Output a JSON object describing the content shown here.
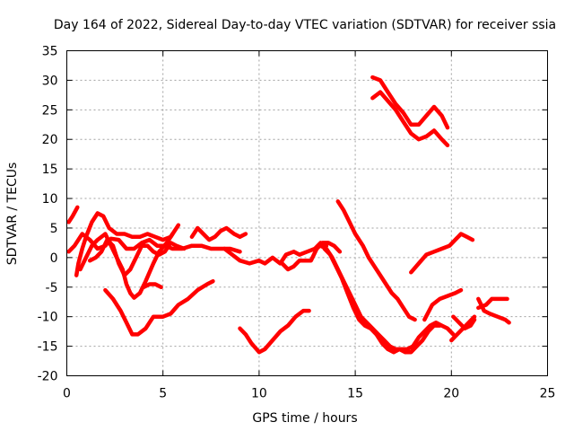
{
  "chart_data": {
    "type": "line",
    "title": "Day 164 of 2022, Sidereal Day-to-day VTEC variation (SDTVAR) for receiver ssia",
    "xlabel": "GPS time / hours",
    "ylabel": "SDTVAR / TECUs",
    "xlim": [
      0,
      25
    ],
    "ylim": [
      -20,
      35
    ],
    "xticks": [
      0,
      5,
      10,
      15,
      20,
      25
    ],
    "yticks": [
      -20,
      -15,
      -10,
      -5,
      0,
      5,
      10,
      15,
      20,
      25,
      30,
      35
    ],
    "grid": true,
    "line_color": "#ff0000",
    "series": [
      {
        "name": "s1",
        "points": [
          [
            0.1,
            6
          ],
          [
            0.3,
            7
          ],
          [
            0.55,
            8.5
          ]
        ]
      },
      {
        "name": "s2",
        "points": [
          [
            0.1,
            1
          ],
          [
            0.4,
            2
          ],
          [
            0.8,
            4
          ],
          [
            1.2,
            3
          ],
          [
            1.6,
            1.5
          ],
          [
            2.0,
            2
          ],
          [
            2.3,
            3.2
          ],
          [
            2.7,
            3
          ],
          [
            3.1,
            1.5
          ],
          [
            3.5,
            1.5
          ],
          [
            3.9,
            2.5
          ],
          [
            4.3,
            3
          ],
          [
            4.7,
            2
          ],
          [
            5.1,
            2
          ],
          [
            5.5,
            1.5
          ],
          [
            6.0,
            1.5
          ],
          [
            6.5,
            2
          ],
          [
            7.0,
            2
          ],
          [
            7.5,
            1.5
          ],
          [
            8.0,
            1.5
          ],
          [
            8.5,
            1.5
          ],
          [
            9.0,
            1
          ]
        ]
      },
      {
        "name": "s3",
        "points": [
          [
            0.5,
            -3
          ],
          [
            0.6,
            -1
          ],
          [
            0.8,
            1.5
          ],
          [
            1.0,
            3.5
          ],
          [
            1.3,
            6
          ],
          [
            1.6,
            7.5
          ],
          [
            1.9,
            7
          ],
          [
            2.2,
            5
          ],
          [
            2.6,
            4
          ],
          [
            3.0,
            4
          ],
          [
            3.4,
            3.5
          ],
          [
            3.8,
            3.5
          ],
          [
            4.2,
            4
          ],
          [
            4.6,
            3.5
          ],
          [
            5.0,
            3
          ],
          [
            5.4,
            3.5
          ],
          [
            5.8,
            5.5
          ]
        ]
      },
      {
        "name": "s4",
        "points": [
          [
            0.7,
            -2
          ],
          [
            1.0,
            0
          ],
          [
            1.3,
            2
          ],
          [
            1.6,
            3
          ],
          [
            2.0,
            4
          ],
          [
            2.3,
            2
          ],
          [
            2.6,
            0
          ],
          [
            2.9,
            -2
          ],
          [
            3.1,
            -4.5
          ],
          [
            3.3,
            -6
          ],
          [
            3.5,
            -6.8
          ],
          [
            3.8,
            -6
          ],
          [
            4.1,
            -4
          ],
          [
            4.5,
            -1
          ],
          [
            4.8,
            1
          ],
          [
            5.2,
            2.5
          ],
          [
            5.5,
            4
          ]
        ]
      },
      {
        "name": "s5",
        "points": [
          [
            1.2,
            -0.5
          ],
          [
            1.5,
            0
          ],
          [
            1.8,
            1
          ],
          [
            2.1,
            3
          ],
          [
            2.4,
            2
          ],
          [
            2.7,
            -1
          ],
          [
            3.0,
            -3
          ],
          [
            3.3,
            -2
          ],
          [
            3.6,
            0
          ],
          [
            3.9,
            2
          ],
          [
            4.2,
            2
          ],
          [
            4.5,
            1
          ],
          [
            4.8,
            0.5
          ],
          [
            5.1,
            1
          ],
          [
            5.4,
            2.5
          ],
          [
            5.7,
            2
          ],
          [
            6.1,
            1.5
          ]
        ]
      },
      {
        "name": "s6",
        "points": [
          [
            2.0,
            -5.5
          ],
          [
            2.4,
            -7
          ],
          [
            2.8,
            -9
          ],
          [
            3.1,
            -11
          ],
          [
            3.4,
            -13
          ],
          [
            3.7,
            -13
          ],
          [
            4.1,
            -12
          ],
          [
            4.5,
            -10
          ],
          [
            5.0,
            -10
          ],
          [
            5.4,
            -9.5
          ],
          [
            5.8,
            -8
          ],
          [
            6.3,
            -7
          ],
          [
            6.8,
            -5.5
          ],
          [
            7.3,
            -4.5
          ],
          [
            7.6,
            -4
          ]
        ]
      },
      {
        "name": "s7",
        "points": [
          [
            4.0,
            -5
          ],
          [
            4.3,
            -4.5
          ],
          [
            4.6,
            -4.5
          ],
          [
            4.9,
            -5
          ]
        ]
      },
      {
        "name": "s8",
        "points": [
          [
            6.5,
            3.5
          ],
          [
            6.8,
            5
          ],
          [
            7.1,
            4
          ],
          [
            7.4,
            3
          ],
          [
            7.7,
            3.5
          ],
          [
            8.0,
            4.5
          ],
          [
            8.3,
            5
          ],
          [
            8.7,
            4
          ],
          [
            9.0,
            3.5
          ],
          [
            9.3,
            4
          ]
        ]
      },
      {
        "name": "s9",
        "points": [
          [
            8.2,
            1.5
          ],
          [
            8.6,
            0.5
          ],
          [
            9.0,
            -0.5
          ],
          [
            9.5,
            -1
          ],
          [
            10.0,
            -0.5
          ],
          [
            10.3,
            -1
          ],
          [
            10.7,
            0
          ],
          [
            11.1,
            -1
          ],
          [
            11.4,
            0.5
          ],
          [
            11.8,
            1
          ],
          [
            12.1,
            0.5
          ],
          [
            12.5,
            1
          ],
          [
            12.9,
            1.5
          ],
          [
            13.2,
            2.5
          ],
          [
            13.5,
            2
          ]
        ]
      },
      {
        "name": "s10",
        "points": [
          [
            9.0,
            -12
          ],
          [
            9.3,
            -13
          ],
          [
            9.6,
            -14.5
          ],
          [
            10.0,
            -16
          ],
          [
            10.3,
            -15.5
          ],
          [
            10.7,
            -14
          ],
          [
            11.1,
            -12.5
          ],
          [
            11.5,
            -11.5
          ],
          [
            11.9,
            -10
          ],
          [
            12.3,
            -9
          ],
          [
            12.6,
            -9
          ]
        ]
      },
      {
        "name": "s11",
        "points": [
          [
            11.2,
            -1
          ],
          [
            11.5,
            -2
          ],
          [
            11.8,
            -1.5
          ],
          [
            12.1,
            -0.5
          ],
          [
            12.4,
            -0.5
          ],
          [
            12.7,
            -0.5
          ],
          [
            13.0,
            1.5
          ],
          [
            13.3,
            2.5
          ],
          [
            13.6,
            2.5
          ],
          [
            13.9,
            2
          ],
          [
            14.2,
            1
          ]
        ]
      },
      {
        "name": "s12",
        "points": [
          [
            13.2,
            2
          ],
          [
            13.5,
            1.5
          ],
          [
            13.8,
            0
          ],
          [
            14.1,
            -2
          ],
          [
            14.4,
            -4
          ],
          [
            14.7,
            -6
          ],
          [
            15.0,
            -8
          ],
          [
            15.3,
            -10
          ],
          [
            15.6,
            -11
          ],
          [
            15.9,
            -12
          ],
          [
            16.2,
            -13
          ],
          [
            16.5,
            -14
          ],
          [
            16.8,
            -15
          ],
          [
            17.1,
            -15.5
          ],
          [
            17.4,
            -15.5
          ],
          [
            17.7,
            -15.5
          ],
          [
            18.0,
            -15
          ],
          [
            18.3,
            -13.5
          ],
          [
            18.6,
            -12.5
          ],
          [
            18.9,
            -11.5
          ],
          [
            19.2,
            -11
          ],
          [
            19.5,
            -11.5
          ],
          [
            19.8,
            -12
          ],
          [
            20.1,
            -13
          ]
        ]
      },
      {
        "name": "s13",
        "points": [
          [
            13.4,
            1.5
          ],
          [
            13.7,
            0.5
          ],
          [
            14.0,
            -1.5
          ],
          [
            14.3,
            -3.5
          ],
          [
            14.6,
            -6
          ],
          [
            14.9,
            -8.5
          ],
          [
            15.2,
            -10.5
          ],
          [
            15.5,
            -11.5
          ],
          [
            15.8,
            -12
          ],
          [
            16.1,
            -13
          ],
          [
            16.4,
            -14.5
          ],
          [
            16.7,
            -15.5
          ],
          [
            17.0,
            -16
          ],
          [
            17.3,
            -15.5
          ],
          [
            17.6,
            -16
          ],
          [
            17.9,
            -16
          ],
          [
            18.2,
            -15
          ],
          [
            18.5,
            -14
          ],
          [
            18.8,
            -12.5
          ],
          [
            19.1,
            -11.5
          ],
          [
            19.4,
            -11.5
          ]
        ]
      },
      {
        "name": "s14",
        "points": [
          [
            14.1,
            9.5
          ],
          [
            14.4,
            8
          ],
          [
            14.7,
            6
          ],
          [
            15.0,
            4
          ],
          [
            15.4,
            2
          ],
          [
            15.7,
            0
          ],
          [
            16.0,
            -1.5
          ],
          [
            16.3,
            -3
          ],
          [
            16.6,
            -4.5
          ],
          [
            16.9,
            -6
          ],
          [
            17.2,
            -7
          ],
          [
            17.5,
            -8.5
          ],
          [
            17.8,
            -10
          ],
          [
            18.1,
            -10.5
          ]
        ]
      },
      {
        "name": "s15",
        "points": [
          [
            15.9,
            30.5
          ],
          [
            16.3,
            30
          ],
          [
            16.7,
            28
          ],
          [
            17.1,
            26
          ],
          [
            17.5,
            24.5
          ],
          [
            17.9,
            22.5
          ],
          [
            18.3,
            22.5
          ],
          [
            18.7,
            24
          ],
          [
            19.1,
            25.5
          ],
          [
            19.5,
            24
          ],
          [
            19.8,
            22
          ]
        ]
      },
      {
        "name": "s16",
        "points": [
          [
            15.9,
            27
          ],
          [
            16.3,
            28
          ],
          [
            16.7,
            26.5
          ],
          [
            17.1,
            25
          ],
          [
            17.5,
            23
          ],
          [
            17.9,
            21
          ],
          [
            18.3,
            20
          ],
          [
            18.7,
            20.5
          ],
          [
            19.1,
            21.5
          ],
          [
            19.5,
            20
          ],
          [
            19.8,
            19
          ]
        ]
      },
      {
        "name": "s17",
        "points": [
          [
            17.9,
            -2.5
          ],
          [
            18.3,
            -1
          ],
          [
            18.7,
            0.5
          ],
          [
            19.1,
            1
          ],
          [
            19.5,
            1.5
          ],
          [
            19.9,
            2
          ],
          [
            20.2,
            3
          ],
          [
            20.5,
            4
          ],
          [
            20.8,
            3.5
          ],
          [
            21.1,
            3
          ]
        ]
      },
      {
        "name": "s18",
        "points": [
          [
            18.6,
            -10.5
          ],
          [
            19.0,
            -8
          ],
          [
            19.4,
            -7
          ],
          [
            19.8,
            -6.5
          ],
          [
            20.2,
            -6
          ],
          [
            20.5,
            -5.5
          ]
        ]
      },
      {
        "name": "s19",
        "points": [
          [
            20.0,
            -14
          ],
          [
            20.3,
            -13
          ],
          [
            20.6,
            -12
          ],
          [
            20.9,
            -11
          ],
          [
            21.2,
            -10
          ]
        ]
      },
      {
        "name": "s20",
        "points": [
          [
            20.1,
            -10
          ],
          [
            20.4,
            -11
          ],
          [
            20.7,
            -12
          ],
          [
            21.0,
            -11.5
          ],
          [
            21.2,
            -10.5
          ]
        ]
      },
      {
        "name": "s21",
        "points": [
          [
            21.4,
            -8.5
          ],
          [
            21.8,
            -8
          ],
          [
            22.1,
            -7
          ],
          [
            22.5,
            -7
          ],
          [
            22.9,
            -7
          ]
        ]
      },
      {
        "name": "s22",
        "points": [
          [
            21.4,
            -7
          ],
          [
            21.7,
            -9
          ],
          [
            22.0,
            -9.5
          ],
          [
            22.4,
            -10
          ],
          [
            22.8,
            -10.5
          ],
          [
            23.0,
            -11
          ]
        ]
      }
    ]
  }
}
